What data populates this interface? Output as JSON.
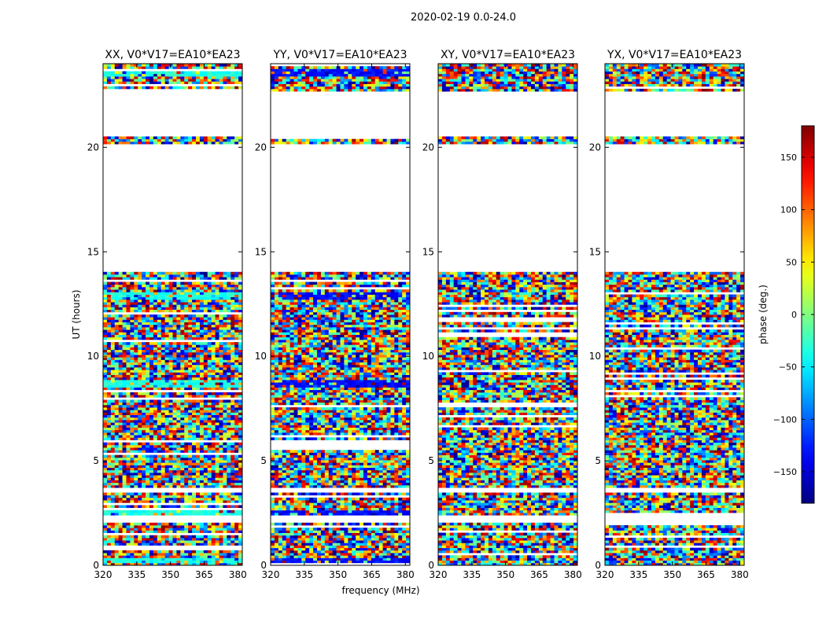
{
  "figure": {
    "suptitle": "2020-02-19 0.0-24.0",
    "xlabel": "frequency (MHz)",
    "ylabel": "UT (hours)"
  },
  "colorbar": {
    "label": "phase (deg.)",
    "range": [
      -180,
      180
    ],
    "ticks": [
      150,
      100,
      50,
      0,
      -50,
      -100,
      -150
    ],
    "tick_labels": [
      "150",
      "100",
      "50",
      "0",
      "−50",
      "−100",
      "−150"
    ],
    "colormap": "jet",
    "colors": [
      "#00007f",
      "#0000ff",
      "#007fff",
      "#00ffff",
      "#7fff7f",
      "#ffff00",
      "#ff7f00",
      "#ff0000",
      "#7f0000"
    ]
  },
  "chart_data": [
    {
      "type": "heatmap",
      "title": "XX, V0*V17=EA10*EA23",
      "x_range": [
        320,
        382
      ],
      "xlim": [
        320,
        382
      ],
      "xticks": [
        320,
        335,
        350,
        365,
        380
      ],
      "ylim": [
        0,
        24
      ],
      "yticks": [
        0,
        5,
        10,
        15,
        20
      ],
      "value": "visibility phase (deg.)",
      "flagged_blank_ut_hours": [
        [
          2.05,
          2.35
        ],
        [
          3.45,
          3.75
        ],
        [
          14.0,
          20.2
        ],
        [
          20.5,
          22.7
        ]
      ],
      "note": "dense noisy phase pattern; cyan-dominated bands near 0.2, 2.5, 8.6, 12.8 and 23.5 h"
    },
    {
      "type": "heatmap",
      "title": "YY, V0*V17=EA10*EA23",
      "x_range": [
        320,
        382
      ],
      "xlim": [
        320,
        382
      ],
      "xticks": [
        320,
        335,
        350,
        365,
        380
      ],
      "ylim": [
        0,
        24
      ],
      "yticks": [
        0,
        5,
        10,
        15,
        20
      ],
      "value": "visibility phase (deg.)",
      "flagged_blank_ut_hours": [
        [
          2.05,
          2.35
        ],
        [
          3.45,
          3.75
        ],
        [
          14.0,
          20.2
        ],
        [
          20.5,
          22.7
        ]
      ],
      "note": "dense noisy phase pattern; blue-dominated bands near 0.2, 2.5, 8.6, 12.8 and 23.5 h"
    },
    {
      "type": "heatmap",
      "title": "XY, V0*V17=EA10*EA23",
      "x_range": [
        320,
        382
      ],
      "xlim": [
        320,
        382
      ],
      "xticks": [
        320,
        335,
        350,
        365,
        380
      ],
      "ylim": [
        0,
        24
      ],
      "yticks": [
        0,
        5,
        10,
        15,
        20
      ],
      "value": "visibility phase (deg.)",
      "flagged_blank_ut_hours": [
        [
          2.05,
          2.35
        ],
        [
          3.45,
          3.75
        ],
        [
          14.0,
          20.2
        ],
        [
          20.5,
          22.7
        ]
      ],
      "note": "dense noisy phase pattern"
    },
    {
      "type": "heatmap",
      "title": "YX, V0*V17=EA10*EA23",
      "x_range": [
        320,
        382
      ],
      "xlim": [
        320,
        382
      ],
      "xticks": [
        320,
        335,
        350,
        365,
        380
      ],
      "ylim": [
        0,
        24
      ],
      "yticks": [
        0,
        5,
        10,
        15,
        20
      ],
      "value": "visibility phase (deg.)",
      "flagged_blank_ut_hours": [
        [
          2.05,
          2.35
        ],
        [
          3.45,
          3.75
        ],
        [
          14.0,
          20.2
        ],
        [
          20.5,
          22.7
        ]
      ],
      "note": "dense noisy phase pattern"
    }
  ]
}
